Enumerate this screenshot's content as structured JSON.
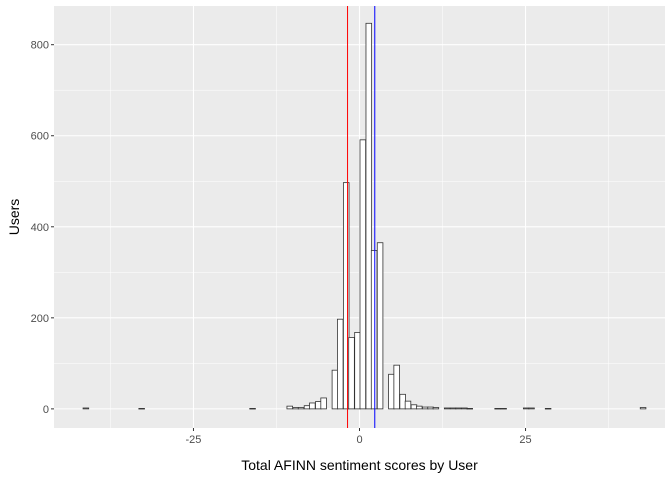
{
  "chart_data": {
    "type": "bar",
    "subtype": "histogram",
    "xlabel": "Total AFINN sentiment scores by User",
    "ylabel": "Users",
    "xlim": [
      -46,
      46
    ],
    "ylim": [
      -42,
      885
    ],
    "x_ticks": [
      -25,
      0,
      25
    ],
    "x_tick_labels": [
      "-25",
      "0",
      "25"
    ],
    "y_ticks": [
      0,
      200,
      400,
      600,
      800
    ],
    "y_tick_labels": [
      "0",
      "200",
      "400",
      "600",
      "800"
    ],
    "grid": true,
    "bin_width": 0.85,
    "bins": [
      {
        "x": -41.2,
        "count": 2
      },
      {
        "x": -32.8,
        "count": 1
      },
      {
        "x": -16.1,
        "count": 1
      },
      {
        "x": -10.5,
        "count": 6
      },
      {
        "x": -9.6,
        "count": 3
      },
      {
        "x": -8.8,
        "count": 3
      },
      {
        "x": -7.9,
        "count": 7
      },
      {
        "x": -7.1,
        "count": 13
      },
      {
        "x": -6.2,
        "count": 16
      },
      {
        "x": -5.4,
        "count": 24
      },
      {
        "x": -3.7,
        "count": 85
      },
      {
        "x": -2.9,
        "count": 197
      },
      {
        "x": -2.0,
        "count": 497
      },
      {
        "x": -1.2,
        "count": 157
      },
      {
        "x": -0.3,
        "count": 168
      },
      {
        "x": 0.5,
        "count": 591
      },
      {
        "x": 1.4,
        "count": 847
      },
      {
        "x": 2.2,
        "count": 348
      },
      {
        "x": 3.1,
        "count": 365
      },
      {
        "x": 4.8,
        "count": 76
      },
      {
        "x": 5.6,
        "count": 96
      },
      {
        "x": 6.5,
        "count": 32
      },
      {
        "x": 7.3,
        "count": 17
      },
      {
        "x": 8.2,
        "count": 9
      },
      {
        "x": 9.0,
        "count": 6
      },
      {
        "x": 9.9,
        "count": 4
      },
      {
        "x": 10.7,
        "count": 4
      },
      {
        "x": 11.5,
        "count": 3
      },
      {
        "x": 13.2,
        "count": 2
      },
      {
        "x": 14.1,
        "count": 2
      },
      {
        "x": 14.9,
        "count": 2
      },
      {
        "x": 15.8,
        "count": 2
      },
      {
        "x": 16.6,
        "count": 1
      },
      {
        "x": 20.8,
        "count": 1
      },
      {
        "x": 21.7,
        "count": 1
      },
      {
        "x": 25.1,
        "count": 2
      },
      {
        "x": 25.9,
        "count": 2
      },
      {
        "x": 28.4,
        "count": 1
      },
      {
        "x": 42.7,
        "count": 3
      }
    ],
    "reference_lines": [
      {
        "x": -1.8,
        "color": "#ff0000"
      },
      {
        "x": 2.3,
        "color": "#0000ff"
      }
    ]
  },
  "colors": {
    "panel_bg": "#ebebeb",
    "grid_major": "#ffffff",
    "bar_fill": "#ffffff",
    "bar_stroke": "#333333"
  }
}
